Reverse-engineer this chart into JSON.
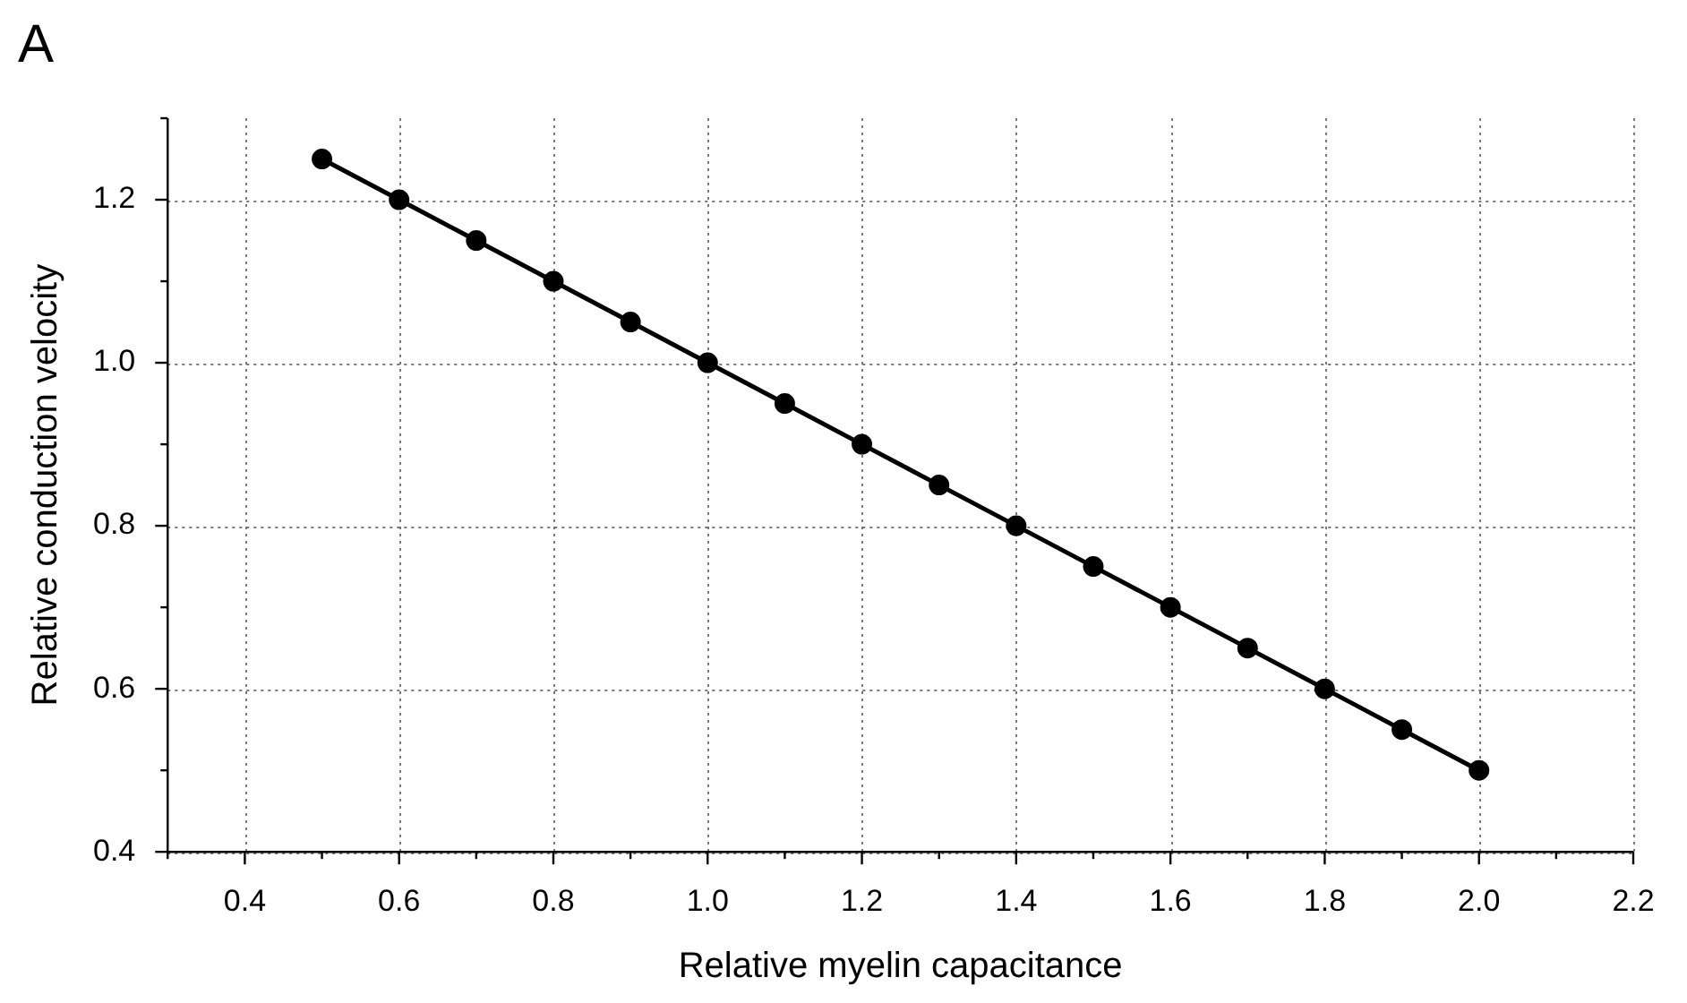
{
  "chart_data": {
    "type": "line",
    "title": "A",
    "xlabel": "Relative myelin capacitance",
    "ylabel": "Relative conduction velocity",
    "x": [
      0.5,
      0.6,
      0.7,
      0.8,
      0.9,
      1.0,
      1.1,
      1.2,
      1.3,
      1.4,
      1.5,
      1.6,
      1.7,
      1.8,
      1.9,
      2.0
    ],
    "series": [
      {
        "color": "#000000",
        "values": [
          1.25,
          1.2,
          1.15,
          1.1,
          1.05,
          1.0,
          0.95,
          0.9,
          0.85,
          0.8,
          0.75,
          0.7,
          0.65,
          0.6,
          0.55,
          0.5
        ]
      }
    ],
    "xlim": [
      0.3,
      2.2
    ],
    "xticks": [
      {
        "value": 0.3,
        "label": null
      },
      0.4,
      {
        "value": 0.5,
        "label": null
      },
      0.6,
      {
        "value": 0.7,
        "label": null
      },
      0.8,
      {
        "value": 0.9,
        "label": null
      },
      {
        "value": 1.0,
        "label": "1.0"
      },
      {
        "value": 1.1,
        "label": null
      },
      1.2,
      {
        "value": 1.3,
        "label": null
      },
      1.4,
      {
        "value": 1.5,
        "label": null
      },
      1.6,
      {
        "value": 1.7,
        "label": null
      },
      1.8,
      {
        "value": 1.9,
        "label": null
      },
      {
        "value": 2.0,
        "label": "2.0"
      },
      {
        "value": 2.1,
        "label": null
      },
      2.2
    ],
    "ylim": [
      0.4,
      1.3
    ],
    "yticks": [
      0.4,
      {
        "value": 0.5,
        "label": null
      },
      0.6,
      {
        "value": 0.7,
        "label": null
      },
      0.8,
      {
        "value": 0.9,
        "label": null
      },
      {
        "value": 1.0,
        "label": "1.0"
      },
      {
        "value": 1.1,
        "label": null
      },
      1.2,
      {
        "value": 1.3,
        "label": null
      }
    ],
    "grid": true,
    "legend": false,
    "marker": "circle",
    "line_style": "solid"
  }
}
